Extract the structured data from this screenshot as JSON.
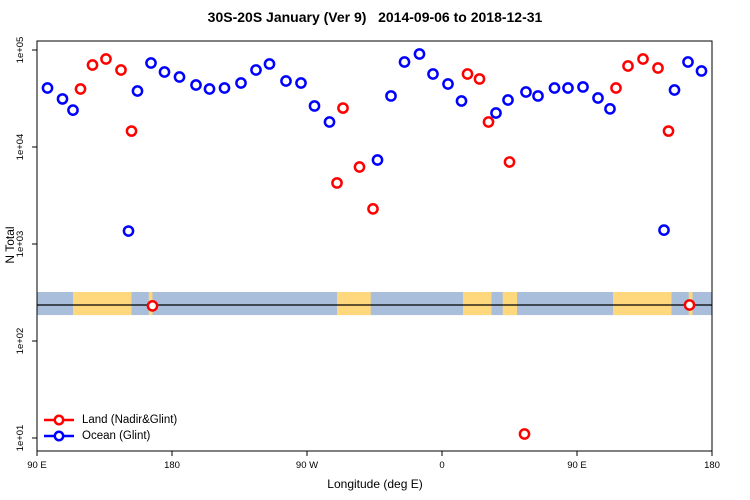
{
  "chart_data": {
    "type": "scatter",
    "title": "30S-20S January (Ver 9)   2014-09-06 to 2018-12-31",
    "xlabel": "Longitude (deg E)",
    "ylabel": "N Total",
    "x_axis": {
      "note": "longitude axis runs eastward from 90E, wrapping past 180 and 0 back to 180; coordinate = degrees east, continuous 90..540",
      "range": [
        90,
        540
      ],
      "ticks": [
        {
          "label": "90 E",
          "lon": 90
        },
        {
          "label": "180",
          "lon": 180
        },
        {
          "label": "90 W",
          "lon": 270
        },
        {
          "label": "0",
          "lon": 360
        },
        {
          "label": "90 E",
          "lon": 450
        },
        {
          "label": "180",
          "lon": 540
        }
      ]
    },
    "y_axis": {
      "scale": "log",
      "range": [
        10,
        100000
      ],
      "ticks": [
        {
          "label": "1e+05",
          "value": 100000
        },
        {
          "label": "1e+04",
          "value": 10000
        },
        {
          "label": "1e+03",
          "value": 1000
        },
        {
          "label": "1e+02",
          "value": 100
        },
        {
          "label": "1e+01",
          "value": 10
        }
      ]
    },
    "series": [
      {
        "name": "Land (Nadir&Glint)",
        "color": "#ff0000",
        "points": [
          [
            119,
            39600
          ],
          [
            127,
            70000
          ],
          [
            136,
            80700
          ],
          [
            146,
            62200
          ],
          [
            153,
            14600
          ],
          [
            167,
            230
          ],
          [
            290,
            4260
          ],
          [
            294,
            25200
          ],
          [
            305,
            6220
          ],
          [
            314,
            2300
          ],
          [
            377,
            56600
          ],
          [
            385,
            50300
          ],
          [
            391,
            18100
          ],
          [
            405,
            7000
          ],
          [
            415,
            11
          ],
          [
            476,
            40600
          ],
          [
            484,
            68400
          ],
          [
            494,
            80700
          ],
          [
            504,
            65200
          ],
          [
            511,
            14600
          ],
          [
            525,
            235
          ]
        ]
      },
      {
        "name": "Ocean (Glint)",
        "color": "#0000ff",
        "points": [
          [
            97,
            40600
          ],
          [
            107,
            31300
          ],
          [
            114,
            24000
          ],
          [
            151,
            1360
          ],
          [
            157,
            37800
          ],
          [
            166,
            73500
          ],
          [
            175,
            59300
          ],
          [
            185,
            52700
          ],
          [
            196,
            43600
          ],
          [
            205,
            39600
          ],
          [
            215,
            40600
          ],
          [
            226,
            45700
          ],
          [
            236,
            62200
          ],
          [
            245,
            71800
          ],
          [
            256,
            47900
          ],
          [
            266,
            45700
          ],
          [
            275,
            26500
          ],
          [
            285,
            18100
          ],
          [
            317,
            7350
          ],
          [
            326,
            33600
          ],
          [
            335,
            75200
          ],
          [
            345,
            91000
          ],
          [
            354,
            56600
          ],
          [
            364,
            44600
          ],
          [
            373,
            29800
          ],
          [
            396,
            22400
          ],
          [
            404,
            30500
          ],
          [
            416,
            36900
          ],
          [
            424,
            33600
          ],
          [
            435,
            40600
          ],
          [
            444,
            40600
          ],
          [
            454,
            41600
          ],
          [
            464,
            32000
          ],
          [
            472,
            24700
          ],
          [
            508,
            1390
          ],
          [
            515,
            38700
          ],
          [
            524,
            75200
          ],
          [
            533,
            60800
          ]
        ]
      }
    ],
    "map_strip": {
      "ocean_color": "#a9bedb",
      "land_color": "#ffd87e",
      "line_color": "#000000",
      "top_n": 320,
      "bottom_n": 185,
      "line_n": 235,
      "land_segments_lon": [
        [
          114,
          153
        ],
        [
          164.5,
          167
        ],
        [
          290,
          312.5
        ],
        [
          374,
          393
        ],
        [
          400.5,
          410
        ],
        [
          474,
          513
        ],
        [
          524.5,
          527
        ]
      ]
    },
    "marker": {
      "shape": "open-circle",
      "radius": 4.6,
      "stroke_width": 2.5
    }
  }
}
